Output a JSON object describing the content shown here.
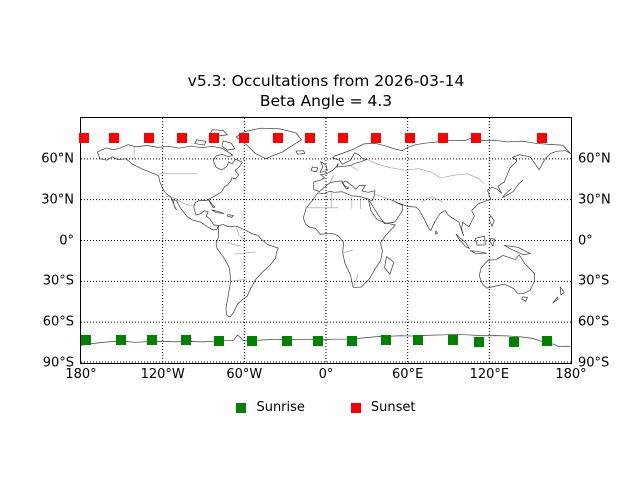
{
  "figure": {
    "title_line1": "v5.3: Occultations from 2026-03-14",
    "title_line2": "Beta Angle = 4.3"
  },
  "chart_data": {
    "type": "scatter",
    "title": "v5.3: Occultations from 2026-03-14",
    "subtitle": "Beta Angle = 4.3",
    "projection": "equirectangular world map with coastlines and country borders",
    "xlim": [
      -180,
      180
    ],
    "ylim": [
      -90,
      90
    ],
    "grid": "dotted black, 60 deg longitude / 30 deg latitude",
    "legend_position": "centered below plot, no frame",
    "x_ticks": [
      {
        "v": -180,
        "label": "180°"
      },
      {
        "v": -120,
        "label": "120°W"
      },
      {
        "v": -60,
        "label": "60°W"
      },
      {
        "v": 0,
        "label": "0°"
      },
      {
        "v": 60,
        "label": "60°E"
      },
      {
        "v": 120,
        "label": "120°E"
      },
      {
        "v": 180,
        "label": "180°"
      }
    ],
    "y_ticks": [
      {
        "v": 60,
        "label": "60°N"
      },
      {
        "v": 30,
        "label": "30°N"
      },
      {
        "v": 0,
        "label": "0°"
      },
      {
        "v": -30,
        "label": "30°S"
      },
      {
        "v": -60,
        "label": "60°S"
      },
      {
        "v": -90,
        "label": "90°S"
      }
    ],
    "grid_lons": [
      -120,
      -60,
      0,
      60,
      120
    ],
    "grid_lats": [
      60,
      30,
      0,
      -30,
      -60,
      -90
    ],
    "series": [
      {
        "name": "Sunrise",
        "color": "#008000",
        "marker": "square",
        "points": [
          [
            -176.3,
            -73.2
          ],
          [
            -150.7,
            -73.2
          ],
          [
            -127.5,
            -73.2
          ],
          [
            -103.2,
            -73.2
          ],
          [
            -78.8,
            -73.5
          ],
          [
            -54.4,
            -73.5
          ],
          [
            -28.8,
            -73.9
          ],
          [
            -5.6,
            -74.2
          ],
          [
            18.8,
            -73.9
          ],
          [
            44.4,
            -73.2
          ],
          [
            67.5,
            -73.2
          ],
          [
            93.2,
            -73.2
          ],
          [
            112.7,
            -74.7
          ],
          [
            138.3,
            -74.7
          ],
          [
            162.7,
            -74.0
          ]
        ]
      },
      {
        "name": "Sunset",
        "color": "#ff0000",
        "marker": "square",
        "points": [
          [
            -177.8,
            75.4
          ],
          [
            -155.6,
            75.4
          ],
          [
            -130.0,
            75.4
          ],
          [
            -105.6,
            75.4
          ],
          [
            -82.5,
            75.4
          ],
          [
            -60.5,
            75.4
          ],
          [
            -34.9,
            75.4
          ],
          [
            -11.7,
            75.4
          ],
          [
            12.7,
            75.4
          ],
          [
            37.1,
            75.4
          ],
          [
            61.5,
            75.4
          ],
          [
            85.8,
            75.4
          ],
          [
            110.3,
            75.4
          ],
          [
            159.0,
            75.4
          ]
        ]
      }
    ]
  },
  "legend": {
    "items": [
      {
        "label": "Sunrise",
        "color": "#008000"
      },
      {
        "label": "Sunset",
        "color": "#ff0000"
      }
    ]
  }
}
